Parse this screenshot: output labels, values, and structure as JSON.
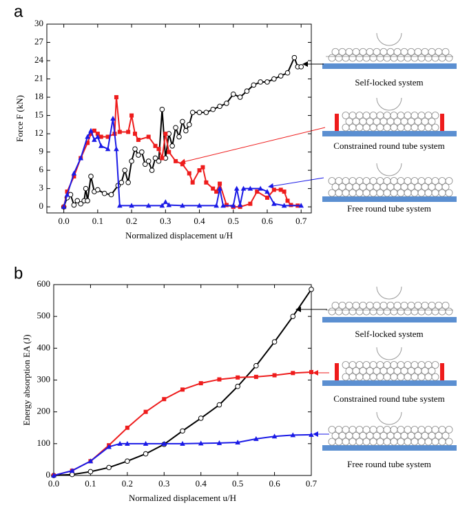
{
  "chart_data": [
    {
      "type": "line",
      "panel_label": "a",
      "x_label": "Normalized displacement u/H",
      "y_label": "Force F (kN)",
      "xlim": [
        -0.05,
        0.73
      ],
      "ylim": [
        -1,
        30
      ],
      "xticks": [
        {
          "value": 0,
          "label": "0.0"
        },
        0.1,
        0.2,
        0.3,
        0.4,
        0.5,
        0.6,
        0.7
      ],
      "yticks": [
        0,
        3,
        6,
        9,
        12,
        15,
        18,
        21,
        24,
        27,
        30
      ],
      "series": [
        {
          "name": "Self-locked system",
          "color": "#000000",
          "marker": "circle",
          "x": [
            0,
            0.01,
            0.02,
            0.03,
            0.04,
            0.05,
            0.06,
            0.065,
            0.07,
            0.08,
            0.09,
            0.1,
            0.12,
            0.14,
            0.16,
            0.17,
            0.18,
            0.19,
            0.2,
            0.21,
            0.22,
            0.23,
            0.24,
            0.25,
            0.26,
            0.27,
            0.28,
            0.29,
            0.3,
            0.31,
            0.32,
            0.33,
            0.34,
            0.35,
            0.36,
            0.37,
            0.38,
            0.4,
            0.42,
            0.44,
            0.46,
            0.48,
            0.5,
            0.52,
            0.54,
            0.56,
            0.58,
            0.6,
            0.62,
            0.64,
            0.66,
            0.68,
            0.69,
            0.7
          ],
          "values": [
            0,
            1.5,
            2,
            0.3,
            1,
            0.5,
            1,
            3,
            1,
            5,
            2.5,
            2.8,
            2.2,
            2,
            3.5,
            4,
            6,
            4,
            7.5,
            9.5,
            8.5,
            9,
            7,
            7.5,
            6,
            8,
            7.5,
            16,
            8,
            12,
            10,
            13,
            11.5,
            14,
            12.5,
            13.5,
            15.5,
            15.5,
            15.5,
            16,
            16.5,
            17,
            18.5,
            18,
            19,
            20,
            20.5,
            20.5,
            21,
            21.5,
            22,
            24.5,
            23,
            23
          ]
        },
        {
          "name": "Constrained round tube system",
          "color": "#ee1c1c",
          "marker": "square",
          "x": [
            0,
            0.01,
            0.03,
            0.05,
            0.07,
            0.08,
            0.09,
            0.1,
            0.11,
            0.13,
            0.15,
            0.155,
            0.165,
            0.19,
            0.2,
            0.21,
            0.22,
            0.25,
            0.27,
            0.28,
            0.29,
            0.3,
            0.31,
            0.33,
            0.35,
            0.37,
            0.38,
            0.4,
            0.41,
            0.42,
            0.44,
            0.45,
            0.46,
            0.48,
            0.5,
            0.52,
            0.55,
            0.57,
            0.6,
            0.62,
            0.64,
            0.65,
            0.66,
            0.67,
            0.69
          ],
          "values": [
            0,
            2.5,
            5,
            8,
            10.5,
            12,
            12.5,
            12,
            11.5,
            11.5,
            12,
            18,
            12.3,
            12.3,
            15,
            12,
            11,
            11.5,
            10,
            9.5,
            8,
            12,
            9,
            7.5,
            7,
            5.5,
            4,
            6,
            6.5,
            4,
            3,
            2.5,
            3.8,
            0.3,
            0,
            0,
            0.5,
            2.5,
            1.5,
            2.8,
            2.8,
            2.5,
            1,
            0.3,
            0.2
          ]
        },
        {
          "name": "Free round tube system",
          "color": "#1a1ae6",
          "marker": "triangle",
          "x": [
            0,
            0.01,
            0.03,
            0.05,
            0.07,
            0.08,
            0.09,
            0.1,
            0.11,
            0.13,
            0.145,
            0.155,
            0.165,
            0.2,
            0.25,
            0.29,
            0.3,
            0.31,
            0.35,
            0.4,
            0.45,
            0.46,
            0.47,
            0.5,
            0.51,
            0.52,
            0.53,
            0.55,
            0.58,
            0.6,
            0.62,
            0.65,
            0.7
          ],
          "values": [
            0,
            2,
            5.5,
            8,
            11.5,
            12.5,
            11,
            11.5,
            10,
            9.5,
            14.5,
            9.5,
            0.2,
            0.2,
            0.2,
            0.2,
            0.8,
            0.3,
            0.2,
            0.2,
            0.2,
            3,
            0.2,
            0.2,
            3,
            0.3,
            3,
            3,
            3,
            2.5,
            0.5,
            0.2,
            0.2
          ]
        }
      ]
    },
    {
      "type": "line",
      "panel_label": "b",
      "x_label": "Normalized displacement u/H",
      "y_label": "Energy absorption EA (J)",
      "xlim": [
        0,
        0.7
      ],
      "ylim": [
        0,
        600
      ],
      "xticks": [
        {
          "value": 0,
          "label": "0.0"
        },
        0.1,
        0.2,
        0.3,
        0.4,
        0.5,
        0.6,
        0.7
      ],
      "yticks": [
        0,
        100,
        200,
        300,
        400,
        500,
        600
      ],
      "series": [
        {
          "name": "Self-locked system",
          "color": "#000000",
          "marker": "circle",
          "x": [
            0,
            0.05,
            0.1,
            0.15,
            0.2,
            0.25,
            0.3,
            0.35,
            0.4,
            0.45,
            0.5,
            0.55,
            0.6,
            0.65,
            0.7
          ],
          "values": [
            0,
            3,
            12,
            25,
            45,
            68,
            98,
            140,
            180,
            222,
            280,
            345,
            420,
            500,
            585
          ]
        },
        {
          "name": "Constrained round tube system",
          "color": "#ee1c1c",
          "marker": "square",
          "x": [
            0,
            0.05,
            0.1,
            0.15,
            0.2,
            0.25,
            0.3,
            0.35,
            0.4,
            0.45,
            0.5,
            0.55,
            0.6,
            0.65,
            0.7
          ],
          "values": [
            0,
            15,
            45,
            95,
            150,
            200,
            240,
            270,
            290,
            302,
            308,
            310,
            315,
            322,
            325
          ]
        },
        {
          "name": "Free round tube system",
          "color": "#1a1ae6",
          "marker": "triangle",
          "x": [
            0,
            0.05,
            0.1,
            0.15,
            0.18,
            0.2,
            0.25,
            0.3,
            0.35,
            0.4,
            0.45,
            0.5,
            0.55,
            0.6,
            0.65,
            0.7
          ],
          "values": [
            0,
            15,
            45,
            90,
            100,
            100,
            100,
            100,
            100,
            101,
            102,
            104,
            115,
            123,
            127,
            128
          ]
        }
      ]
    }
  ]
}
